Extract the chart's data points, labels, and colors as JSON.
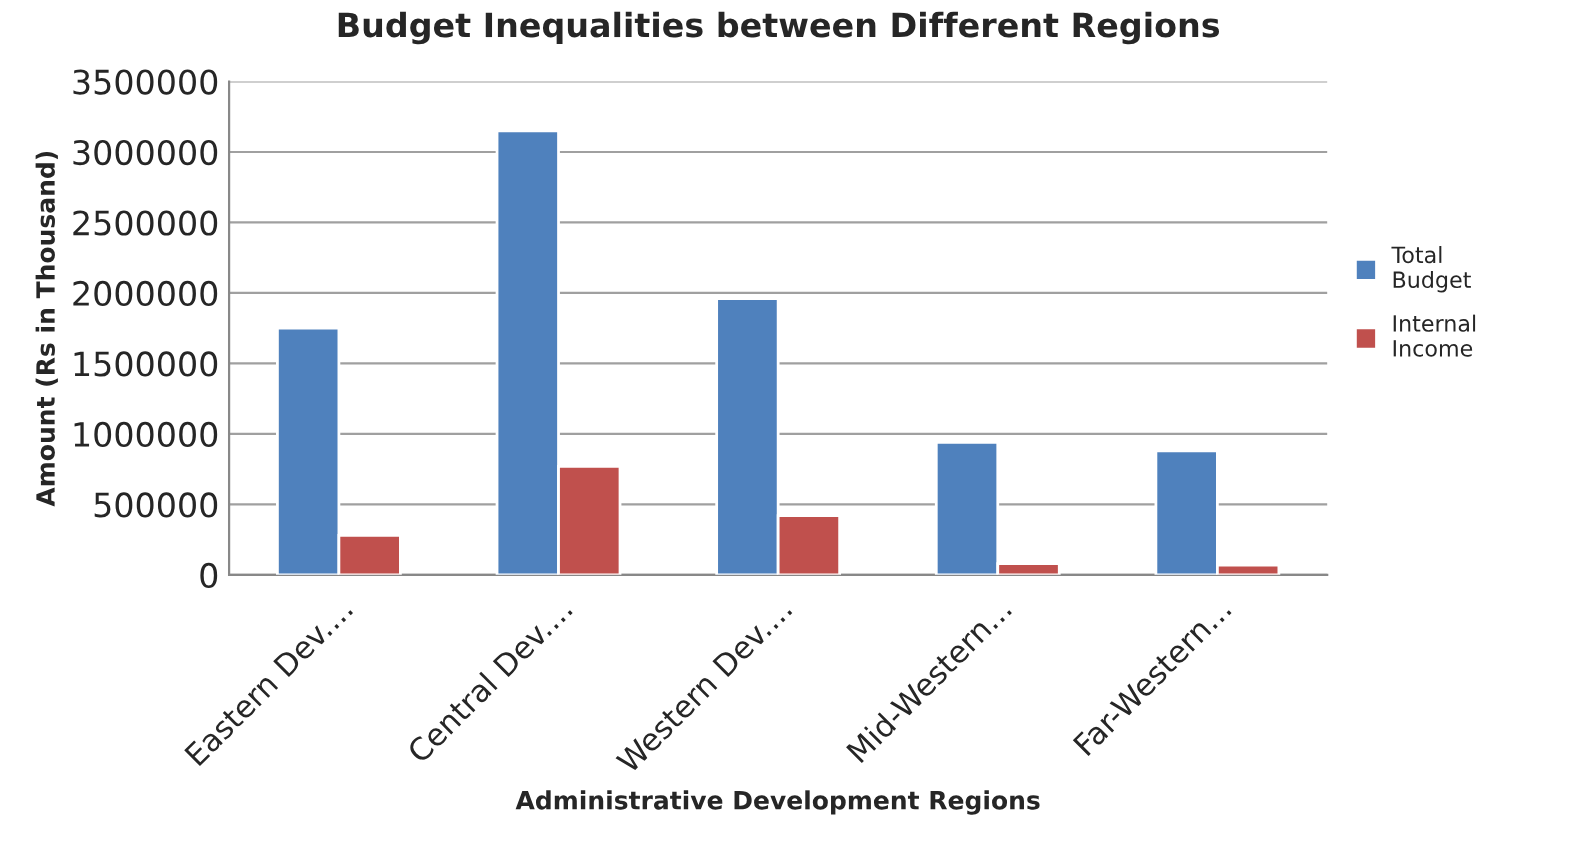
{
  "chart_data": {
    "type": "bar",
    "title": "Budget Inequalities between Different Regions",
    "xlabel": "Administrative Development Regions",
    "ylabel": "Amount (Rs in Thousand)",
    "categories": [
      "Eastern Dev....",
      "Central Dev....",
      "Western Dev....",
      "Mid-Western...",
      "Far-Western..."
    ],
    "series": [
      {
        "name": "Total\nBudget",
        "color": "#4f81bd",
        "values": [
          1750000,
          3150000,
          1960000,
          940000,
          880000
        ]
      },
      {
        "name": "Internal\nIncome",
        "color": "#c0504d",
        "values": [
          280000,
          770000,
          420000,
          80000,
          70000
        ]
      }
    ],
    "ylim": [
      0,
      3500000
    ],
    "yticks": [
      0,
      500000,
      1000000,
      1500000,
      2000000,
      2500000,
      3000000,
      3500000
    ],
    "grid": "y",
    "legend": "right"
  }
}
